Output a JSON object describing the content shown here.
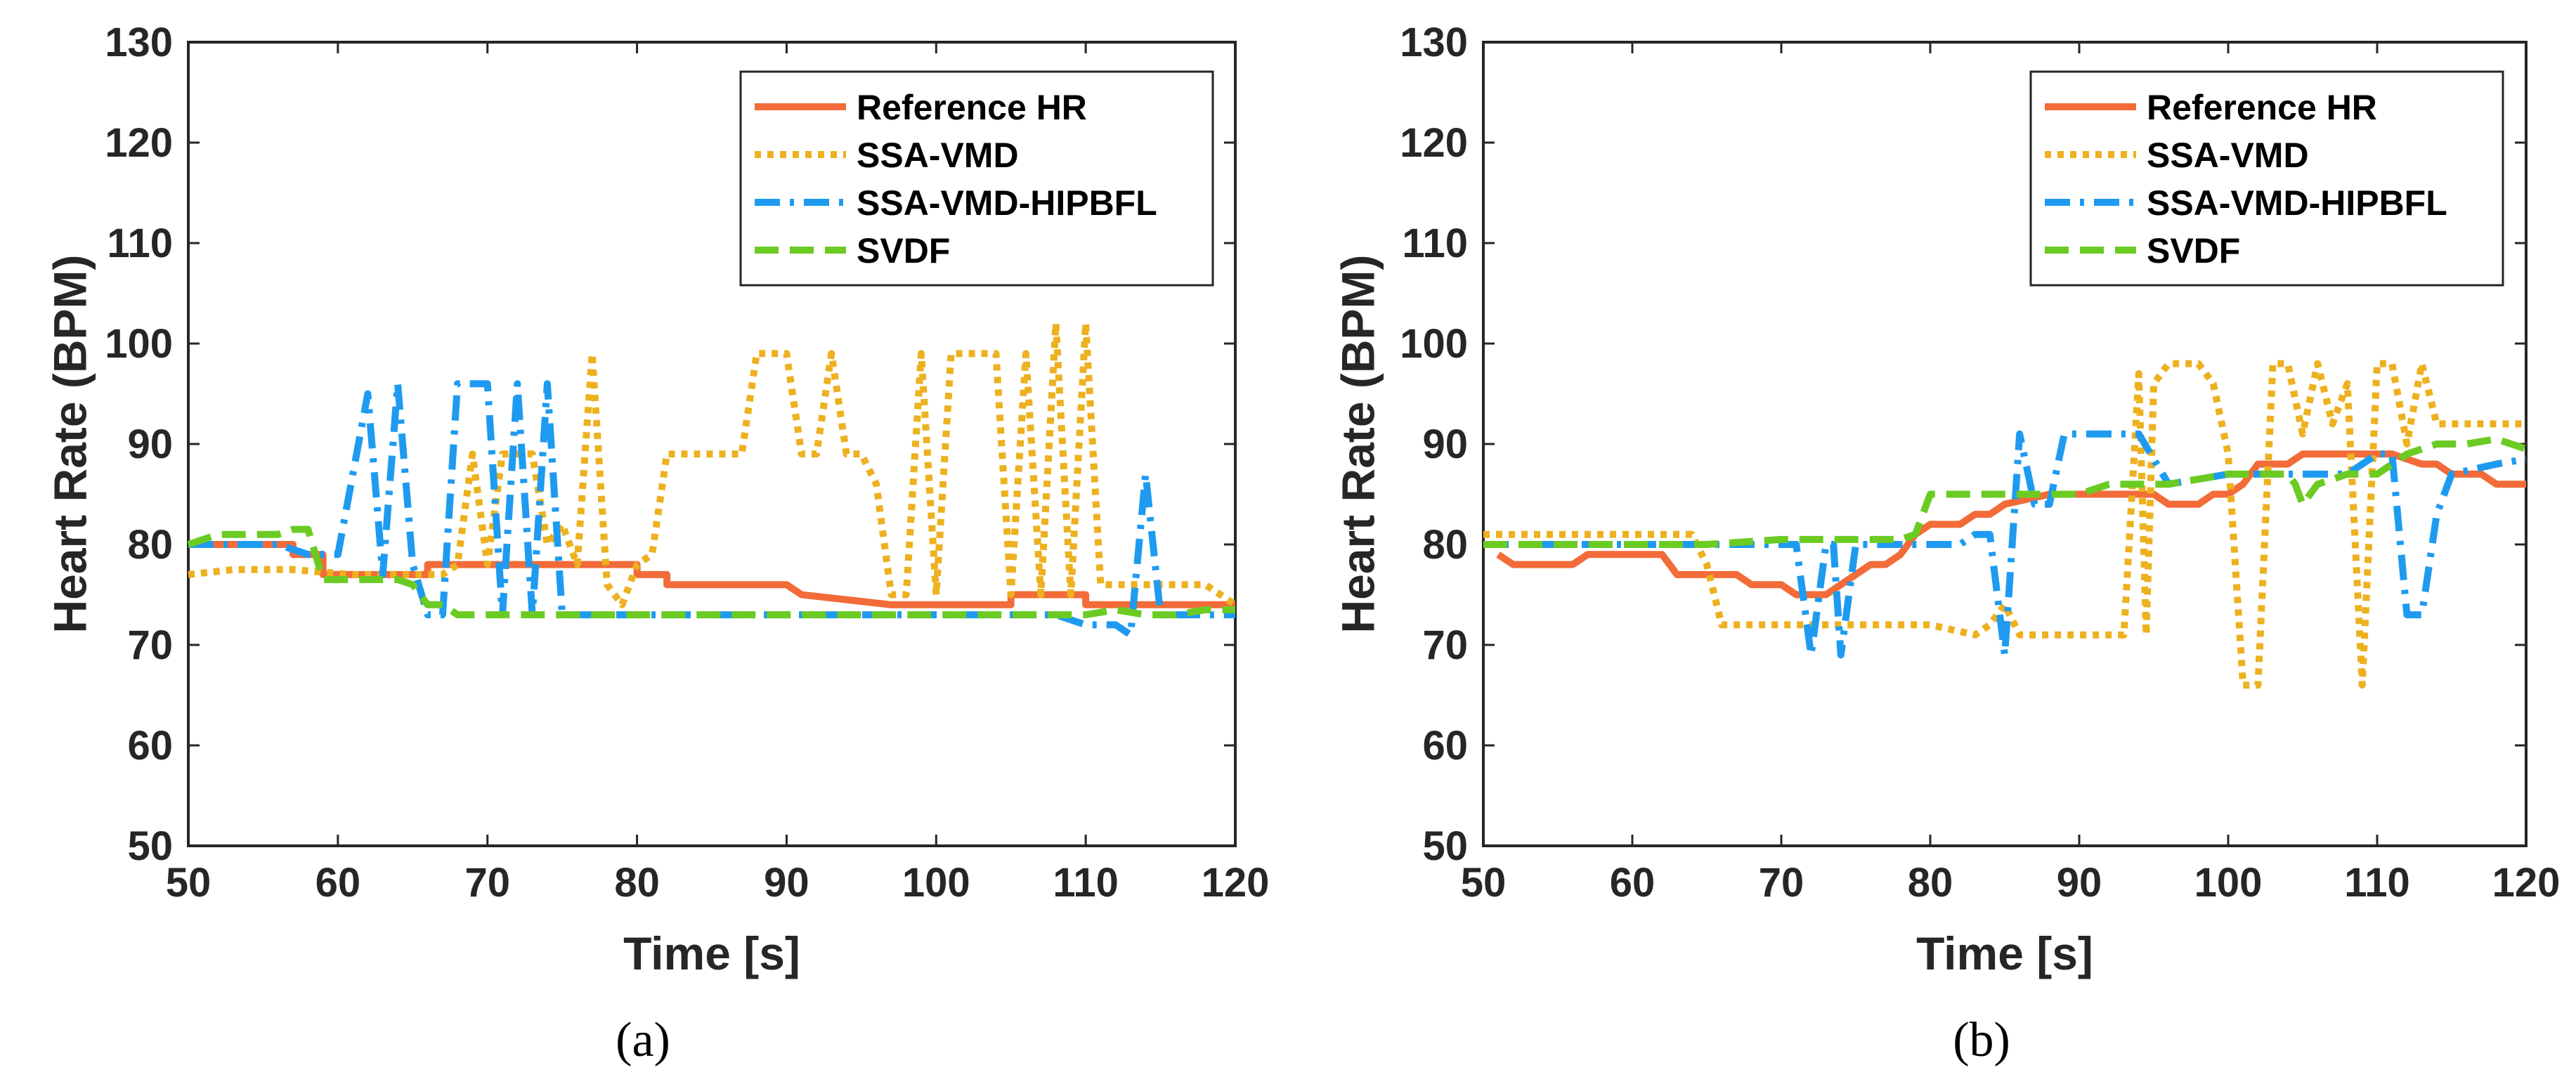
{
  "chart_data": [
    {
      "type": "line",
      "panel_label": "(a)",
      "xlabel": "Time [s]",
      "ylabel": "Heart Rate (BPM)",
      "xlim": [
        50,
        120
      ],
      "ylim": [
        50,
        130
      ],
      "xticks": [
        "50",
        "60",
        "70",
        "80",
        "90",
        "100",
        "110",
        "120"
      ],
      "yticks": [
        "50",
        "60",
        "70",
        "80",
        "90",
        "100",
        "110",
        "120",
        "130"
      ],
      "legend_position": "top-right",
      "series": [
        {
          "name": "Reference HR",
          "color": "#F26B38",
          "style": "solid",
          "x": [
            50,
            55,
            55,
            57,
            57,
            59,
            59,
            61,
            61,
            66,
            66,
            80,
            80,
            82,
            82,
            90,
            90,
            91,
            91,
            97,
            97,
            105,
            105,
            110,
            110,
            120
          ],
          "y": [
            80,
            80,
            80,
            80,
            79,
            79,
            77,
            77,
            77,
            77,
            78,
            78,
            77,
            77,
            76,
            76,
            76,
            75,
            75,
            74,
            74,
            74,
            75,
            75,
            74,
            74
          ]
        },
        {
          "name": "SSA-VMD",
          "color": "#EDB120",
          "style": "dotted",
          "x": [
            50,
            53,
            57,
            61,
            65,
            67,
            68,
            69,
            70,
            71,
            72,
            73,
            74,
            75,
            76,
            77,
            78,
            79,
            80,
            81,
            82,
            83,
            84,
            85,
            86,
            87,
            88,
            89,
            90,
            91,
            92,
            93,
            94,
            95,
            96,
            97,
            98,
            99,
            100,
            101,
            102,
            103,
            104,
            105,
            106,
            107,
            108,
            109,
            110,
            111,
            112,
            113,
            114,
            115,
            116,
            117,
            118,
            119,
            120
          ],
          "y": [
            77,
            77.5,
            77.5,
            77,
            77,
            77,
            78,
            89,
            78,
            89,
            89,
            89,
            80,
            82,
            78,
            99,
            76,
            74,
            78,
            79,
            89,
            89,
            89,
            89,
            89,
            89,
            99,
            99,
            99,
            89,
            89,
            99,
            89,
            89,
            86,
            75,
            75,
            99,
            75,
            99,
            99,
            99,
            99,
            75,
            99,
            75,
            102,
            75,
            102,
            76,
            76,
            76,
            76,
            76,
            76,
            76,
            76,
            75,
            74
          ]
        },
        {
          "name": "SSA-VMD-HIPBFL",
          "color": "#1E9BF0",
          "style": "dashdot",
          "x": [
            50,
            56,
            58,
            60,
            62,
            63,
            64,
            65,
            66,
            67,
            68,
            69,
            70,
            71,
            72,
            73,
            74,
            75,
            76,
            80,
            90,
            100,
            105,
            108,
            110,
            111,
            112,
            113,
            114,
            115,
            116,
            118,
            120
          ],
          "y": [
            80,
            80,
            79,
            79,
            95,
            77,
            96,
            78,
            73,
            73,
            96,
            96,
            96,
            73,
            96,
            73,
            96,
            73,
            73,
            73,
            73,
            73,
            73,
            73,
            72,
            72,
            72,
            71,
            87,
            73,
            73,
            73,
            73
          ]
        },
        {
          "name": "SVDF",
          "color": "#6BCB23",
          "style": "dashed",
          "x": [
            50,
            52,
            54,
            56,
            57,
            58,
            59,
            60,
            62,
            64,
            65,
            66,
            67,
            68,
            70,
            75,
            80,
            90,
            100,
            105,
            110,
            112,
            114,
            116,
            118,
            120
          ],
          "y": [
            80,
            81,
            81,
            81,
            81.5,
            81.5,
            76.5,
            76.5,
            76.5,
            76.5,
            76,
            74,
            74,
            73,
            73,
            73,
            73,
            73,
            73,
            73,
            73,
            73.5,
            73,
            73,
            73.5,
            73.5
          ]
        }
      ]
    },
    {
      "type": "line",
      "panel_label": "(b)",
      "xlabel": "Time [s]",
      "ylabel": "Heart Rate (BPM)",
      "xlim": [
        50,
        120
      ],
      "ylim": [
        50,
        130
      ],
      "xticks": [
        "50",
        "60",
        "70",
        "80",
        "90",
        "100",
        "110",
        "120"
      ],
      "yticks": [
        "50",
        "60",
        "70",
        "80",
        "90",
        "100",
        "110",
        "120",
        "130"
      ],
      "legend_position": "top-right",
      "series": [
        {
          "name": "Reference HR",
          "color": "#F26B38",
          "style": "solid",
          "x": [
            51,
            52,
            56,
            57,
            62,
            63,
            66,
            67,
            68,
            70,
            71,
            73,
            74,
            75,
            76,
            77,
            78,
            79,
            80,
            82,
            83,
            84,
            85,
            88,
            90,
            92,
            94,
            95,
            96,
            97,
            98,
            99,
            100,
            101,
            102,
            104,
            105,
            107,
            109,
            111,
            113,
            114,
            115,
            116,
            117,
            118,
            120
          ],
          "y": [
            79,
            78,
            78,
            79,
            79,
            77,
            77,
            77,
            76,
            76,
            75,
            75,
            76,
            77,
            78,
            78,
            79,
            81,
            82,
            82,
            83,
            83,
            84,
            85,
            85,
            85,
            85,
            85,
            84,
            84,
            84,
            85,
            85,
            86,
            88,
            88,
            89,
            89,
            89,
            89,
            88,
            88,
            87,
            87,
            87,
            86,
            86
          ]
        },
        {
          "name": "SSA-VMD",
          "color": "#EDB120",
          "style": "dotted",
          "x": [
            50,
            53,
            64,
            65,
            66,
            70,
            75,
            80,
            83,
            84,
            85,
            86,
            87,
            88,
            90,
            93,
            94,
            94.5,
            95,
            96,
            97,
            98,
            99,
            100,
            101,
            102,
            103,
            104,
            105,
            106,
            107,
            108,
            109,
            110,
            111,
            112,
            113,
            114,
            116,
            118,
            120
          ],
          "y": [
            81,
            81,
            81,
            78,
            72,
            72,
            72,
            72,
            71,
            72,
            74,
            71,
            71,
            71,
            71,
            71,
            97,
            71,
            96,
            98,
            98,
            98,
            96,
            89,
            66,
            66,
            98,
            98,
            91,
            98,
            92,
            96,
            66,
            98,
            98,
            90,
            98,
            92,
            92,
            92,
            92
          ]
        },
        {
          "name": "SSA-VMD-HIPBFL",
          "color": "#1E9BF0",
          "style": "dashdot",
          "x": [
            50,
            60,
            65,
            70,
            71,
            72,
            73,
            73.5,
            74,
            75,
            76,
            80,
            82,
            83,
            84,
            85,
            86,
            87,
            88,
            89,
            90,
            92,
            93,
            94,
            96,
            100,
            105,
            108,
            110,
            111,
            112,
            113,
            114,
            115,
            118,
            120
          ],
          "y": [
            80,
            80,
            80,
            80,
            80,
            69,
            80,
            80,
            69,
            80,
            80,
            80,
            80,
            81,
            81,
            69,
            91,
            84,
            84,
            91,
            91,
            91,
            91,
            91,
            86,
            87,
            87,
            87,
            89,
            89,
            73,
            73,
            83,
            87,
            88,
            88.5
          ]
        },
        {
          "name": "SVDF",
          "color": "#6BCB23",
          "style": "dashed",
          "x": [
            50,
            55,
            60,
            65,
            70,
            72,
            75,
            78,
            79,
            80,
            82,
            84,
            86,
            88,
            90,
            92,
            94,
            96,
            98,
            100,
            102,
            104,
            104.5,
            105,
            106,
            108,
            110,
            111,
            112,
            114,
            116,
            118,
            120
          ],
          "y": [
            80,
            80,
            80,
            80,
            80.5,
            80.5,
            80.5,
            80.5,
            81,
            85,
            85,
            85,
            85,
            85,
            85,
            86,
            86,
            86,
            86.5,
            87,
            87,
            87,
            86,
            84,
            86,
            87,
            87,
            88,
            89,
            90,
            90,
            90.5,
            89.5
          ]
        }
      ]
    }
  ]
}
